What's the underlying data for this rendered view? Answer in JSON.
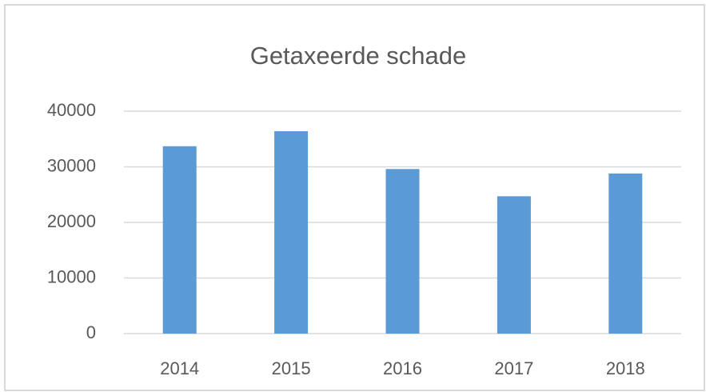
{
  "chart_data": {
    "type": "bar",
    "title": "Getaxeerde schade",
    "categories": [
      "2014",
      "2015",
      "2016",
      "2017",
      "2018"
    ],
    "values": [
      33700,
      36400,
      29600,
      24700,
      28800
    ],
    "color": "#5b9bd5",
    "ylim": [
      0,
      40000
    ],
    "yticks": [
      0,
      10000,
      20000,
      30000,
      40000
    ],
    "grid": true
  }
}
